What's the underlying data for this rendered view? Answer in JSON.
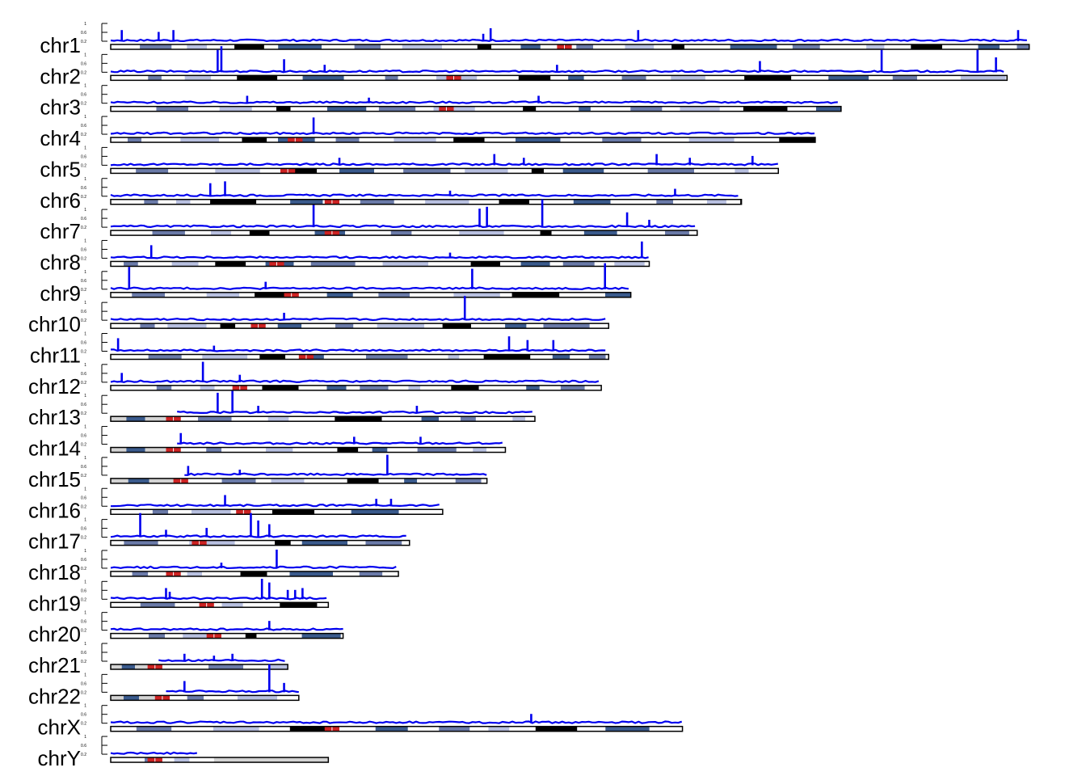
{
  "chart_data": {
    "type": "line",
    "title": "",
    "xlabel": "",
    "ylabel": "",
    "ylim": [
      0,
      1
    ],
    "y_tick_labels": [
      "1",
      "0.6",
      "0.2"
    ],
    "colors": {
      "signal": "#0000ee",
      "centromere": "#cc2222",
      "band_gneg": "#ffffff",
      "band_gpos25": "#b8c0e0",
      "band_gpos50": "#6a7aa8",
      "band_gpos75": "#3a5a8c",
      "band_gpos100": "#000000",
      "band_stalk": "#d3d3d3",
      "outline": "#000000"
    },
    "chromosomes": [
      {
        "name": "chr1",
        "length_mb": 249,
        "centromere_mb": 123,
        "pter_gap": false
      },
      {
        "name": "chr2",
        "length_mb": 243,
        "centromere_mb": 93,
        "pter_gap": false
      },
      {
        "name": "chr3",
        "length_mb": 198,
        "centromere_mb": 91,
        "pter_gap": false
      },
      {
        "name": "chr4",
        "length_mb": 191,
        "centromere_mb": 50,
        "pter_gap": false
      },
      {
        "name": "chr5",
        "length_mb": 181,
        "centromere_mb": 48,
        "pter_gap": false
      },
      {
        "name": "chr6",
        "length_mb": 171,
        "centromere_mb": 60,
        "pter_gap": false
      },
      {
        "name": "chr7",
        "length_mb": 159,
        "centromere_mb": 60,
        "pter_gap": false
      },
      {
        "name": "chr8",
        "length_mb": 146,
        "centromere_mb": 45,
        "pter_gap": false
      },
      {
        "name": "chr9",
        "length_mb": 141,
        "centromere_mb": 49,
        "pter_gap": false
      },
      {
        "name": "chr10",
        "length_mb": 135,
        "centromere_mb": 40,
        "pter_gap": false
      },
      {
        "name": "chr11",
        "length_mb": 135,
        "centromere_mb": 53,
        "pter_gap": false
      },
      {
        "name": "chr12",
        "length_mb": 133,
        "centromere_mb": 35,
        "pter_gap": false
      },
      {
        "name": "chr13",
        "length_mb": 115,
        "centromere_mb": 17,
        "pter_gap": true
      },
      {
        "name": "chr14",
        "length_mb": 107,
        "centromere_mb": 17,
        "pter_gap": true
      },
      {
        "name": "chr15",
        "length_mb": 102,
        "centromere_mb": 19,
        "pter_gap": true
      },
      {
        "name": "chr16",
        "length_mb": 90,
        "centromere_mb": 36,
        "pter_gap": false
      },
      {
        "name": "chr17",
        "length_mb": 81,
        "centromere_mb": 24,
        "pter_gap": false
      },
      {
        "name": "chr18",
        "length_mb": 78,
        "centromere_mb": 17,
        "pter_gap": false
      },
      {
        "name": "chr19",
        "length_mb": 59,
        "centromere_mb": 26,
        "pter_gap": false
      },
      {
        "name": "chr20",
        "length_mb": 63,
        "centromere_mb": 28,
        "pter_gap": false
      },
      {
        "name": "chr21",
        "length_mb": 48,
        "centromere_mb": 12,
        "pter_gap": true
      },
      {
        "name": "chr22",
        "length_mb": 51,
        "centromere_mb": 14,
        "pter_gap": true
      },
      {
        "name": "chrX",
        "length_mb": 155,
        "centromere_mb": 60,
        "pter_gap": false
      },
      {
        "name": "chrY",
        "length_mb": 59,
        "centromere_mb": 12,
        "pter_gap": false
      }
    ],
    "peaks": {
      "chr1": [
        [
          3,
          0.3
        ],
        [
          13,
          0.25
        ],
        [
          17,
          0.3
        ],
        [
          101,
          0.2
        ],
        [
          103,
          0.35
        ],
        [
          143,
          0.3
        ],
        [
          246,
          0.3
        ]
      ],
      "chr2": [
        [
          30,
          0.7
        ],
        [
          29,
          0.6
        ],
        [
          47,
          0.35
        ],
        [
          58,
          0.2
        ],
        [
          121,
          0.2
        ],
        [
          176,
          0.3
        ],
        [
          209,
          0.6
        ],
        [
          235,
          0.6
        ],
        [
          240,
          0.4
        ]
      ],
      "chr3": [
        [
          37,
          0.2
        ],
        [
          70,
          0.15
        ],
        [
          116,
          0.2
        ]
      ],
      "chr4": [
        [
          55,
          0.45
        ]
      ],
      "chr5": [
        [
          62,
          0.2
        ],
        [
          104,
          0.3
        ],
        [
          112,
          0.2
        ],
        [
          148,
          0.3
        ],
        [
          157,
          0.2
        ],
        [
          174,
          0.25
        ]
      ],
      "chr6": [
        [
          27,
          0.35
        ],
        [
          31,
          0.4
        ],
        [
          92,
          0.15
        ],
        [
          153,
          0.2
        ]
      ],
      "chr7": [
        [
          55,
          0.6
        ],
        [
          100,
          0.5
        ],
        [
          102,
          0.55
        ],
        [
          117,
          0.75
        ],
        [
          140,
          0.4
        ],
        [
          146,
          0.2
        ]
      ],
      "chr8": [
        [
          11,
          0.35
        ],
        [
          144,
          0.45
        ],
        [
          92,
          0.15
        ]
      ],
      "chr9": [
        [
          5,
          0.6
        ],
        [
          42,
          0.2
        ],
        [
          98,
          0.55
        ],
        [
          134,
          0.7
        ]
      ],
      "chr10": [
        [
          96,
          0.65
        ],
        [
          47,
          0.2
        ]
      ],
      "chr11": [
        [
          2,
          0.35
        ],
        [
          28,
          0.15
        ],
        [
          108,
          0.4
        ],
        [
          113,
          0.3
        ],
        [
          120,
          0.3
        ]
      ],
      "chr12": [
        [
          25,
          0.55
        ],
        [
          3,
          0.25
        ],
        [
          35,
          0.2
        ]
      ],
      "chr13": [
        [
          29,
          0.55
        ],
        [
          33,
          0.6
        ],
        [
          40,
          0.2
        ],
        [
          83,
          0.2
        ]
      ],
      "chr14": [
        [
          19,
          0.3
        ],
        [
          66,
          0.2
        ],
        [
          84,
          0.2
        ]
      ],
      "chr15": [
        [
          21,
          0.25
        ],
        [
          75,
          0.55
        ],
        [
          35,
          0.15
        ]
      ],
      "chr16": [
        [
          31,
          0.3
        ],
        [
          72,
          0.2
        ],
        [
          76,
          0.2
        ]
      ],
      "chr17": [
        [
          8,
          0.65
        ],
        [
          38,
          0.65
        ],
        [
          40,
          0.45
        ],
        [
          43,
          0.35
        ],
        [
          26,
          0.25
        ],
        [
          15,
          0.2
        ]
      ],
      "chr18": [
        [
          45,
          0.5
        ],
        [
          30,
          0.15
        ]
      ],
      "chr19": [
        [
          15,
          0.3
        ],
        [
          16,
          0.2
        ],
        [
          41,
          0.55
        ],
        [
          43,
          0.45
        ],
        [
          48,
          0.25
        ],
        [
          52,
          0.3
        ],
        [
          50,
          0.25
        ]
      ],
      "chr20": [
        [
          43,
          0.25
        ]
      ],
      "chr21": [
        [
          20,
          0.2
        ],
        [
          28,
          0.15
        ],
        [
          33,
          0.2
        ]
      ],
      "chr22": [
        [
          20,
          0.3
        ],
        [
          43,
          0.75
        ],
        [
          47,
          0.25
        ]
      ],
      "chrX": [
        [
          114,
          0.25
        ]
      ],
      "chrY": []
    }
  }
}
